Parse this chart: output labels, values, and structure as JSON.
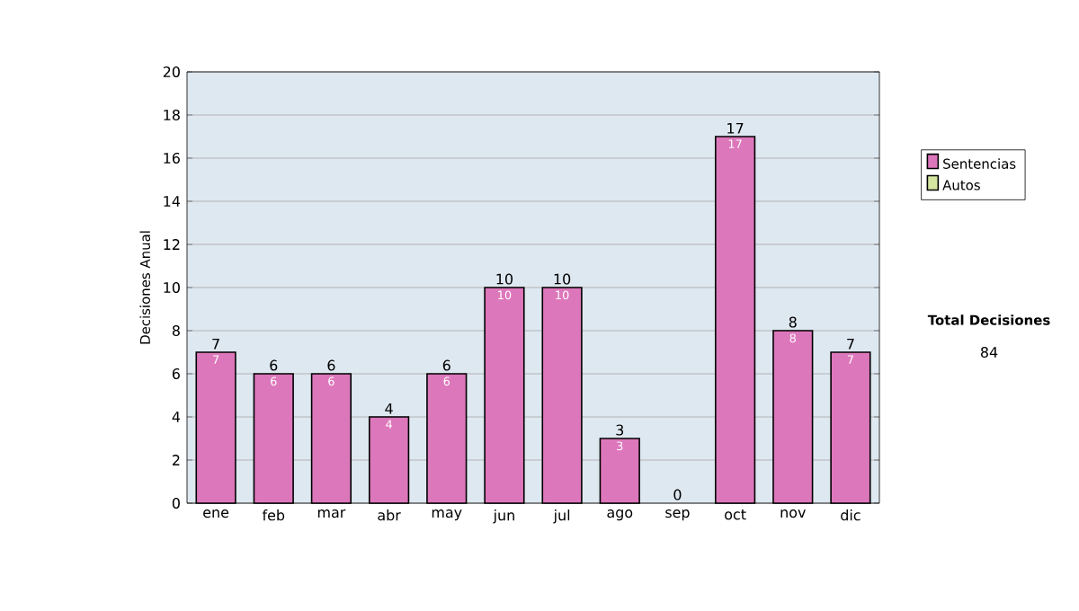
{
  "chart_data": {
    "type": "bar",
    "stacked": true,
    "ylabel": "Decisiones Anual",
    "categories": [
      "ene",
      "feb",
      "mar",
      "abr",
      "may",
      "jun",
      "jul",
      "ago",
      "sep",
      "oct",
      "nov",
      "dic"
    ],
    "series": [
      {
        "name": "Sentencias",
        "color": "#dd77bb",
        "values": [
          7,
          6,
          6,
          4,
          6,
          10,
          10,
          3,
          0,
          17,
          8,
          7
        ],
        "value_labels": [
          "7",
          "6",
          "6",
          "4",
          "6",
          "10",
          "10",
          "3",
          null,
          "17",
          "8",
          "7"
        ]
      },
      {
        "name": "Autos",
        "color": "#d4e6a0",
        "values": [
          0,
          0,
          0,
          0,
          0,
          0,
          0,
          0,
          0,
          0,
          0,
          0
        ]
      }
    ],
    "totals": [
      "7",
      "6",
      "6",
      "4",
      "6",
      "10",
      "10",
      "3",
      "0",
      "17",
      "8",
      "7"
    ],
    "ylim": [
      0,
      20
    ],
    "yticks": [
      0,
      2,
      4,
      6,
      8,
      10,
      12,
      14,
      16,
      18,
      20
    ],
    "grid": "y",
    "legend": "right",
    "annotations": [
      "Total Decisiones",
      "84"
    ]
  }
}
